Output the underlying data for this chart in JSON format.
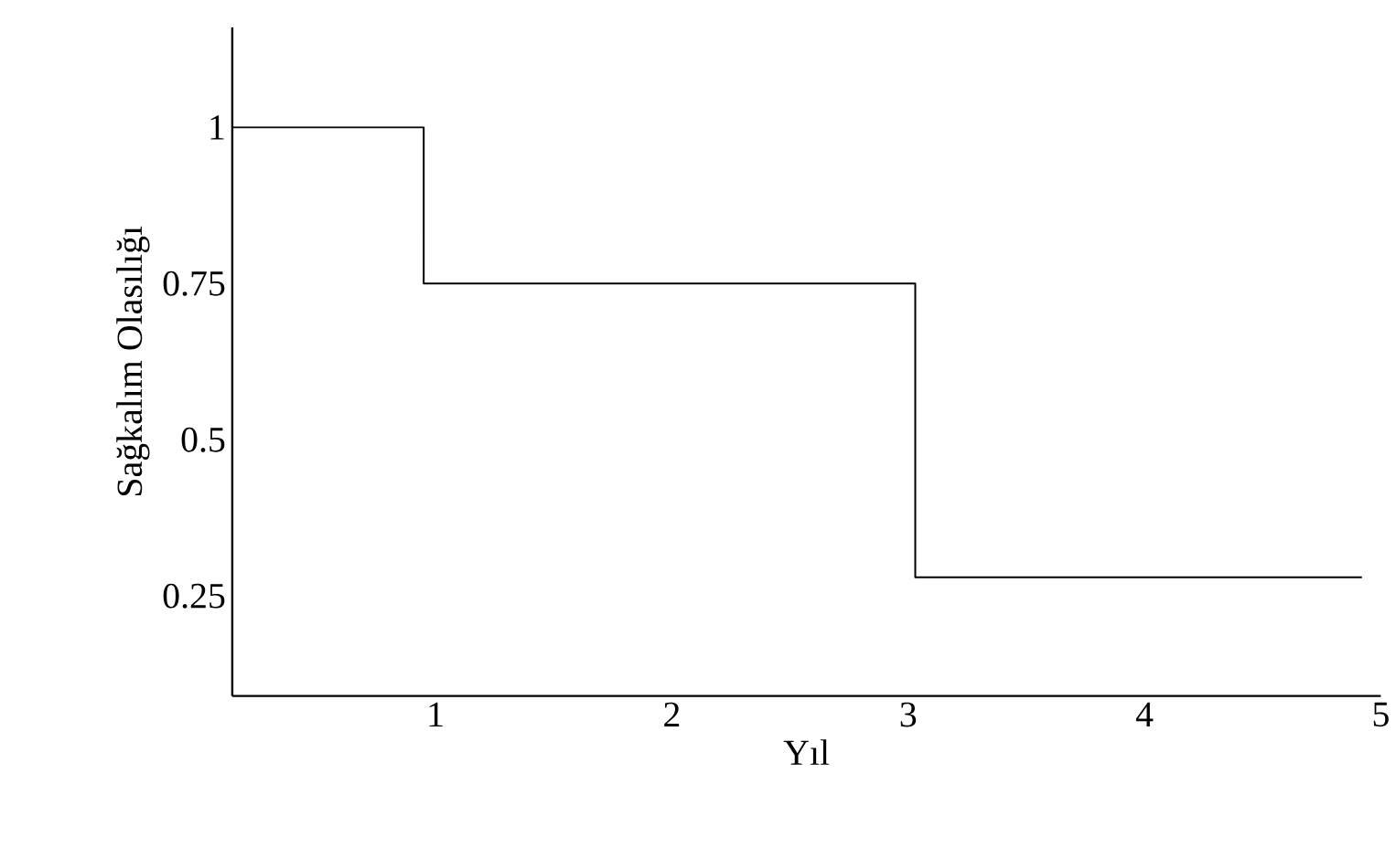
{
  "chart_data": {
    "type": "step",
    "xlabel": "Yıl",
    "ylabel": "Sağkalım Olasılığı",
    "x": [
      0.14,
      0.95,
      3.03,
      4.92
    ],
    "values": [
      1,
      0.75,
      0.28,
      0.28
    ],
    "color": "#000000",
    "xlim": [
      0.14,
      5
    ],
    "ylim": [
      0.09,
      1.16
    ],
    "xticks": [
      1,
      2,
      3,
      4,
      5
    ],
    "yticks": [
      0.25,
      0.5,
      0.75,
      1
    ],
    "grid": false,
    "marker": "none",
    "line_style": "solid"
  }
}
